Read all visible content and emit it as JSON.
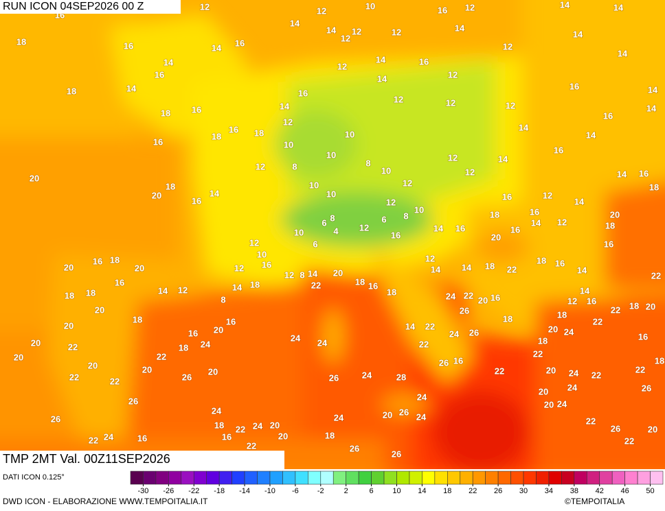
{
  "header": {
    "run": "RUN ICON 04SEP2026 00 Z"
  },
  "map": {
    "title": "TMP 2MT Val. 00Z11SEP2026",
    "labels": [
      12,
      12,
      10,
      16,
      12,
      14,
      14,
      16,
      14,
      14,
      12,
      12,
      12,
      14,
      14,
      18,
      16,
      14,
      16,
      12,
      14,
      14,
      14,
      16,
      12,
      12,
      16,
      18,
      14,
      14,
      16,
      16,
      14,
      12,
      12,
      12,
      14,
      18,
      16,
      16,
      14,
      12,
      18,
      16,
      18,
      10,
      14,
      14,
      16,
      10,
      10,
      8,
      10,
      12,
      14,
      16,
      12,
      8,
      12,
      14,
      16,
      20,
      18,
      20,
      14,
      16,
      10,
      12,
      10,
      12,
      16,
      12,
      14,
      18,
      10,
      18,
      16,
      20,
      8,
      6,
      8,
      6,
      12,
      4,
      10,
      14,
      16,
      16,
      14,
      12,
      18,
      20,
      16,
      6,
      12,
      16,
      20,
      16,
      18,
      20,
      10,
      16,
      12,
      12,
      14,
      14,
      18,
      18,
      16,
      22,
      14,
      20,
      12,
      8,
      14,
      18,
      16,
      22,
      14,
      18,
      22,
      18,
      16,
      14,
      12,
      18,
      18,
      24,
      22,
      20,
      16,
      14,
      12,
      16,
      8,
      20,
      26,
      18,
      22,
      20,
      18,
      18,
      16,
      20,
      14,
      22,
      22,
      20,
      18,
      24,
      26,
      20,
      24,
      16,
      24,
      24,
      18,
      16,
      18,
      24,
      22,
      20,
      22,
      22,
      20,
      26,
      16,
      22,
      18,
      20,
      20,
      22,
      26,
      20,
      26,
      24,
      28,
      22,
      20,
      24,
      22,
      22,
      22,
      24,
      26,
      20,
      26,
      24,
      26,
      20,
      24,
      20,
      24,
      26,
      24,
      24,
      22,
      26,
      22,
      20,
      18,
      22,
      24,
      20,
      22,
      24,
      16,
      16,
      20,
      18,
      22,
      26,
      26
    ]
  },
  "legend": {
    "source": "DATI ICON 0.125°",
    "range": [
      -32,
      52
    ],
    "ticks": [
      -30,
      -26,
      -22,
      -18,
      -14,
      -10,
      -6,
      -2,
      2,
      6,
      10,
      14,
      18,
      22,
      26,
      30,
      34,
      38,
      42,
      46,
      50
    ],
    "colors": [
      "#5a0050",
      "#6a0070",
      "#800080",
      "#9000a0",
      "#9a10c0",
      "#8000d0",
      "#6000e0",
      "#4020f0",
      "#2040ff",
      "#2060ff",
      "#2080ff",
      "#20a0ff",
      "#30c0ff",
      "#40e0ff",
      "#80ffff",
      "#b0ffff",
      "#80f080",
      "#60e060",
      "#40d040",
      "#60d030",
      "#90e020",
      "#b0e800",
      "#d0f000",
      "#ffff00",
      "#ffe000",
      "#ffc800",
      "#ffb000",
      "#ff9800",
      "#ff8000",
      "#ff6800",
      "#ff5000",
      "#ff3800",
      "#f02000",
      "#e00000",
      "#c80020",
      "#c00060",
      "#d02080",
      "#e040a0",
      "#f060c0",
      "#ff80d0",
      "#ffa0e0",
      "#ffc0f0"
    ]
  },
  "footer": {
    "credit": "DWD ICON - ELABORAZIONE WWW.TEMPOITALIA.IT",
    "copyright": "©TEMPOITALIA"
  }
}
